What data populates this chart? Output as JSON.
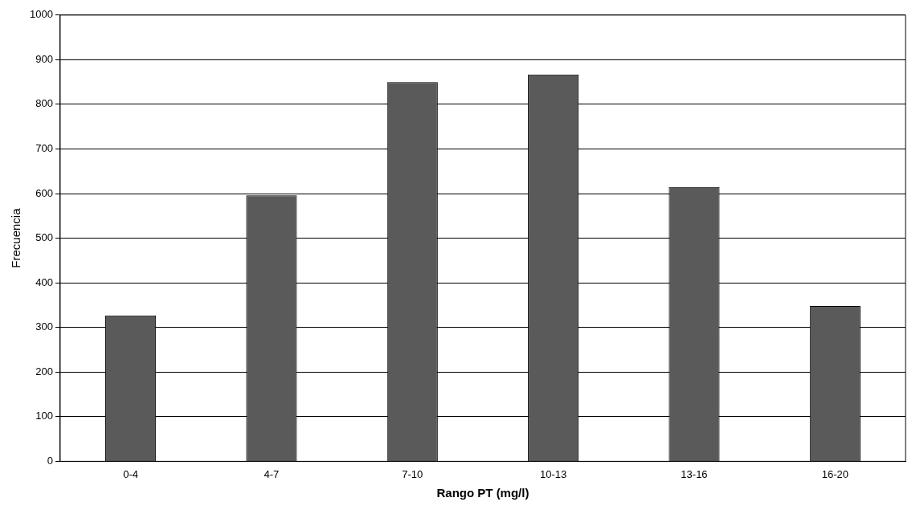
{
  "chart_data": {
    "type": "bar",
    "xlabel": "Rango PT (mg/l)",
    "ylabel": "Frecuencia",
    "categories": [
      "0-4",
      "4-7",
      "7-10",
      "10-13",
      "13-16",
      "16-20"
    ],
    "values": [
      327,
      596,
      850,
      867,
      615,
      348
    ],
    "color": "#5a5a5a",
    "ylim": [
      0,
      1000
    ],
    "yticks": [
      0,
      100,
      200,
      300,
      400,
      500,
      600,
      700,
      800,
      900,
      1000
    ],
    "grid": "y"
  }
}
